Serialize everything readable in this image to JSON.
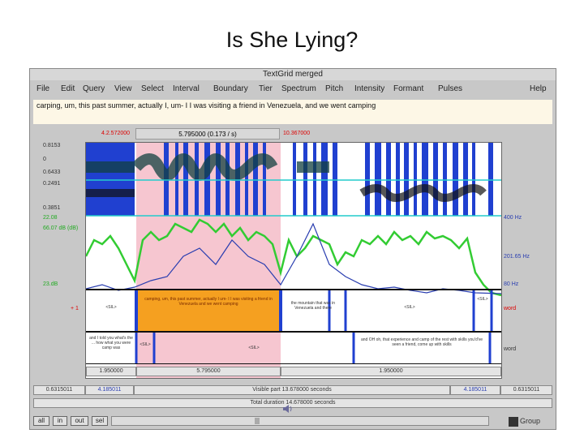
{
  "slide_title": "Is She Lying?",
  "window_title": "TextGrid merged",
  "menu": [
    "File",
    "Edit",
    "Query",
    "View",
    "Select",
    "Interval",
    "Boundary",
    "Tier",
    "Spectrum",
    "Pitch",
    "Intensity",
    "Formant",
    "Pulses"
  ],
  "help": "Help",
  "transcript": "carping, um, this past summer, actually I, um- I I was visiting a friend in Venezuela, and we went camping",
  "selection": {
    "start": "4.2.572000",
    "duration": "5.795000 (0.173 / s)",
    "end": "10.367000"
  },
  "axis_labels": {
    "wave_top": "0.8153",
    "wave_zero": "0",
    "wave_mid1": "0.6433",
    "wave_mid2": "0.2491",
    "wave_bottom": "0.3851",
    "pitch_top_left": "22.08",
    "pitch_hz_left": "66.07 dB (dB)",
    "pitch_bottom_left": "23.dB",
    "pitch_top_right": "400 Hz",
    "pitch_mid_right": "201.65 Hz",
    "pitch_bottom_right": "80 Hz"
  },
  "tiers": {
    "tier1_labels": [
      "<SIL>",
      "camping, um, this past summer, actually I um- I I was visiting a friend in Venezuela and we went camping",
      "the mountain that was in Venezuela and there",
      "<SIL>",
      "<SIL>"
    ],
    "tier1_side": "word",
    "tier2_labels": [
      "and I told you what's the ... how what you were camp was",
      "<SIL>",
      "<SIL>",
      "and OH oh, that experience and camp of the rest with skills you'd've seen a friend, come up with skills"
    ],
    "tier2_side": "word"
  },
  "duration_bar": {
    "left": "1.950000",
    "mid": "5.795000",
    "right": "1.950000"
  },
  "visible_bar": {
    "left": "0.6315011",
    "mid_left": "4.185011",
    "mid": "Visible part 13.678000 seconds",
    "right_left": "4.185011",
    "right": "0.6315011"
  },
  "total_bar": "Total duration 14.678000 seconds",
  "buttons": {
    "all": "all",
    "in": "in",
    "out": "out",
    "sel": "sel",
    "group": "Group"
  }
}
